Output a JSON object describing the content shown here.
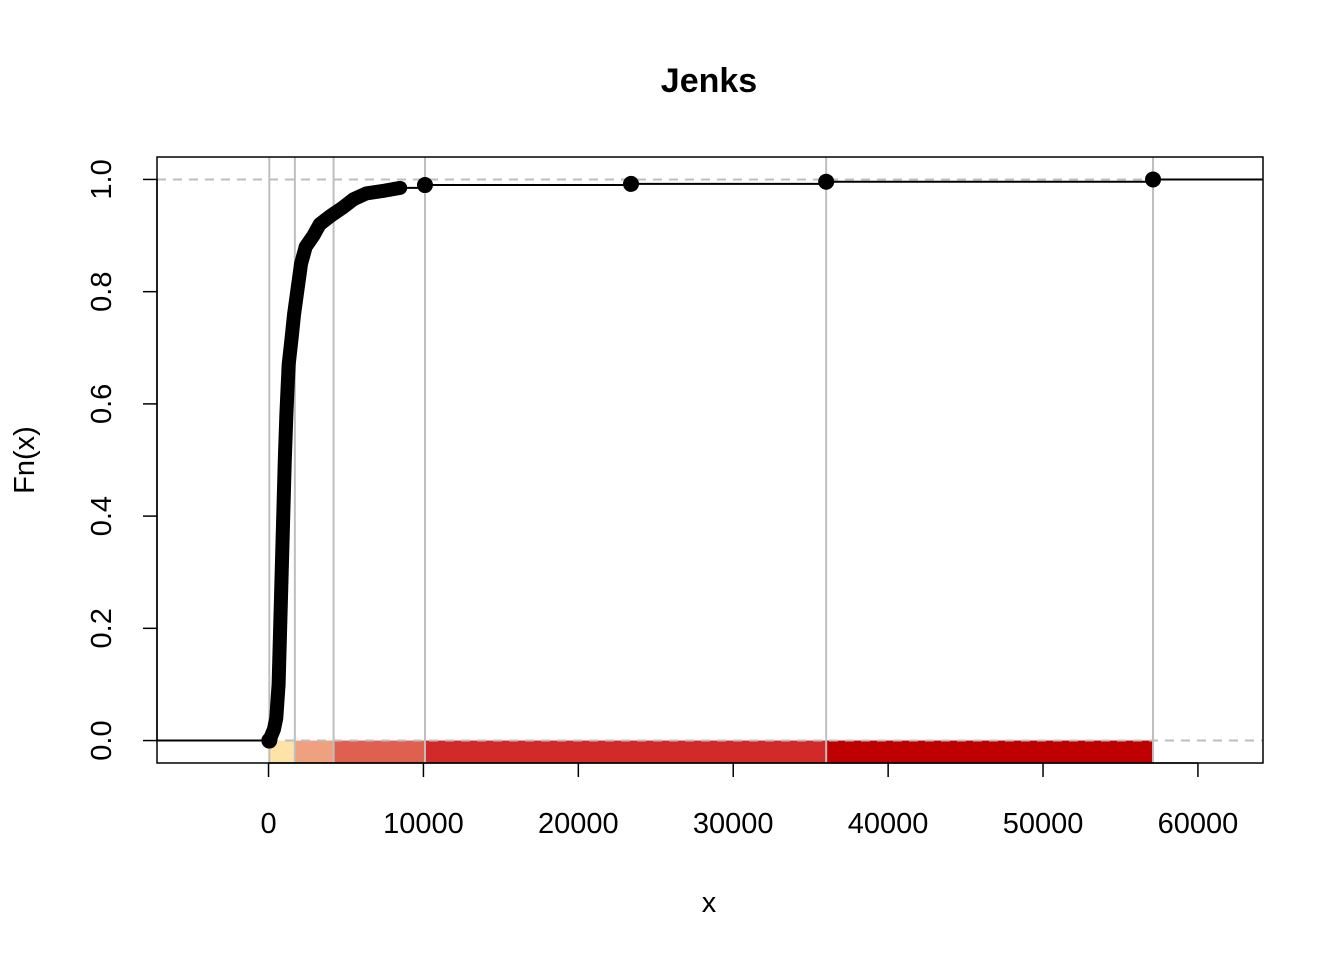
{
  "chart_data": {
    "type": "line",
    "subtype": "ecdf-step",
    "title": "Jenks",
    "xlabel": "x",
    "ylabel": "Fn(x)",
    "xlim": [
      -7200,
      64200
    ],
    "ylim": [
      -0.04,
      1.04
    ],
    "x_ticks": [
      0,
      10000,
      20000,
      30000,
      40000,
      50000,
      60000
    ],
    "y_ticks": [
      0.0,
      0.2,
      0.4,
      0.6,
      0.8,
      1.0
    ],
    "x_tick_labels": [
      "0",
      "10000",
      "20000",
      "30000",
      "40000",
      "50000",
      "60000"
    ],
    "y_tick_labels": [
      "0.0",
      "0.2",
      "0.4",
      "0.6",
      "0.8",
      "1.0"
    ],
    "reference_lines_y": [
      0,
      1
    ],
    "class_breaks": [
      50,
      1700,
      4200,
      10100,
      36000,
      57100
    ],
    "class_colors": [
      "#FEE3A8",
      "#EFA17F",
      "#E0604F",
      "#D22A28",
      "#BE0000"
    ],
    "colors": {
      "points": "#000000",
      "breaks": "#BEBEBE",
      "reference": "#BEBEBE"
    },
    "dense_curve": [
      [
        50,
        0.0
      ],
      [
        350,
        0.02
      ],
      [
        500,
        0.04
      ],
      [
        650,
        0.1
      ],
      [
        750,
        0.2
      ],
      [
        850,
        0.3
      ],
      [
        950,
        0.4
      ],
      [
        1050,
        0.5
      ],
      [
        1150,
        0.58
      ],
      [
        1300,
        0.67
      ],
      [
        1500,
        0.72
      ],
      [
        1650,
        0.76
      ],
      [
        1850,
        0.8
      ],
      [
        2100,
        0.85
      ],
      [
        2400,
        0.88
      ],
      [
        2900,
        0.9
      ],
      [
        3300,
        0.92
      ],
      [
        4000,
        0.935
      ],
      [
        4800,
        0.95
      ],
      [
        5500,
        0.965
      ],
      [
        6300,
        0.975
      ],
      [
        7500,
        0.98
      ],
      [
        8500,
        0.985
      ]
    ],
    "outlier_points": [
      [
        10100,
        0.99
      ],
      [
        23400,
        0.992
      ],
      [
        36000,
        0.996
      ],
      [
        57100,
        1.0
      ]
    ]
  }
}
